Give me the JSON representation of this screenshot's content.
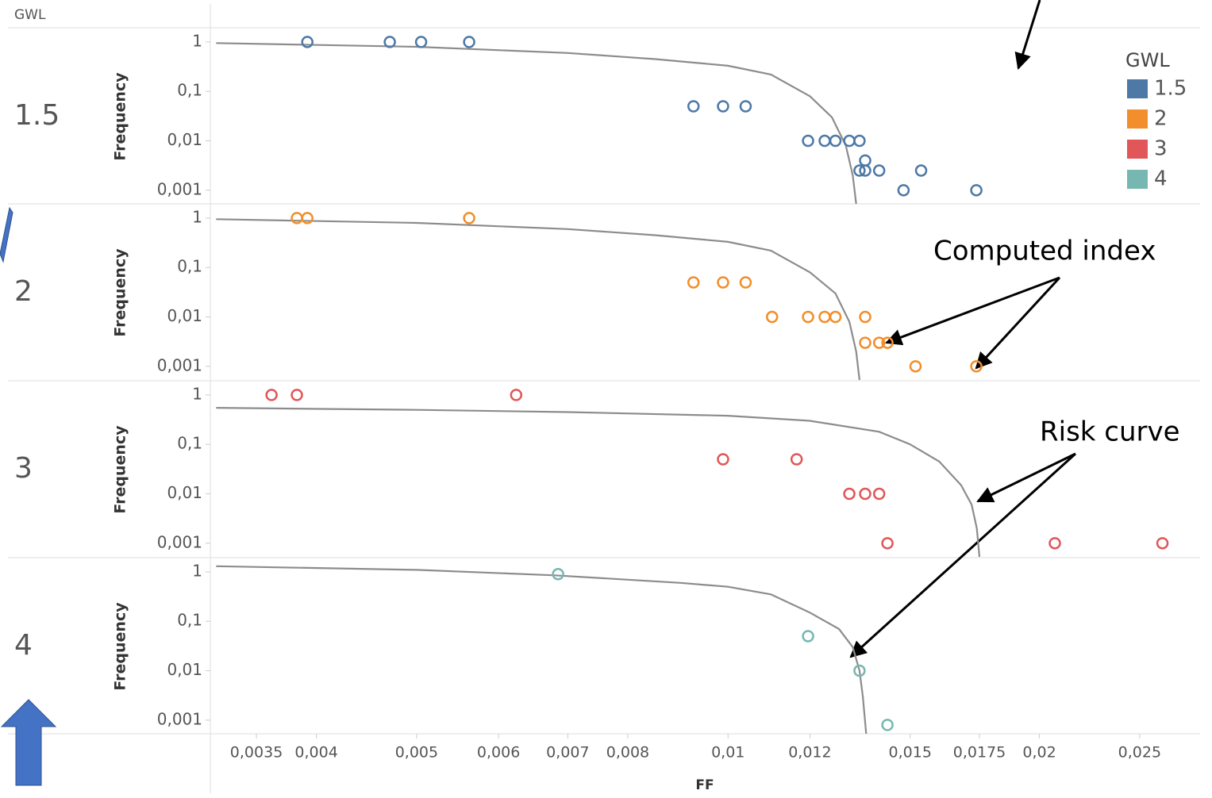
{
  "facet_header": "GWL",
  "legend_title": "GWL",
  "annotations": [
    "Computed index",
    "Risk curve"
  ],
  "chart_data": [
    {
      "type": "scatter",
      "y_label": "Frequency",
      "log_x": true,
      "log_y": true,
      "xlim": [
        0.00317,
        0.0286
      ],
      "ylim": [
        0.00053,
        1.94
      ],
      "yticks": [
        1,
        {
          "value": 0.1,
          "label": "0,1"
        },
        {
          "value": 0.01,
          "label": "0,01"
        },
        {
          "value": 0.001,
          "label": "0,001"
        }
      ],
      "series": [
        {
          "name": "1.5",
          "color": "#4e79a7",
          "x": [
            0.00392,
            0.00471,
            0.00505,
            0.00562,
            0.00926,
            0.00989,
            0.0104,
            0.01195,
            0.0124,
            0.0127,
            0.0131,
            0.0134,
            0.01357,
            0.0134,
            0.01357,
            0.014,
            0.01537,
            0.01478,
            0.01738
          ],
          "values": [
            1,
            1,
            1,
            1,
            0.05,
            0.05,
            0.05,
            0.01,
            0.01,
            0.01,
            0.01,
            0.01,
            0.004,
            0.0025,
            0.0025,
            0.0025,
            0.0025,
            0.001,
            0.001
          ]
        }
      ],
      "risk_curve": {
        "color": "#8c8c8c",
        "x": [
          0.0032,
          0.005,
          0.007,
          0.0085,
          0.01,
          0.011,
          0.012,
          0.0126,
          0.013,
          0.0132,
          0.0133
        ],
        "values": [
          0.95,
          0.8,
          0.6,
          0.45,
          0.33,
          0.22,
          0.08,
          0.03,
          0.008,
          0.002,
          0.00053
        ]
      }
    },
    {
      "type": "scatter",
      "y_label": "Frequency",
      "log_x": true,
      "log_y": true,
      "xlim": [
        0.00317,
        0.0286
      ],
      "ylim": [
        0.00053,
        1.94
      ],
      "yticks": [
        1,
        {
          "value": 0.1,
          "label": "0,1"
        },
        {
          "value": 0.01,
          "label": "0,01"
        },
        {
          "value": 0.001,
          "label": "0,001"
        }
      ],
      "series": [
        {
          "name": "2",
          "color": "#f28e2b",
          "x": [
            0.00383,
            0.00392,
            0.00562,
            0.00926,
            0.00989,
            0.0104,
            0.01103,
            0.01195,
            0.0124,
            0.0127,
            0.01357,
            0.01357,
            0.014,
            0.01426,
            0.01518,
            0.01738
          ],
          "values": [
            1,
            1,
            1,
            0.05,
            0.05,
            0.05,
            0.01,
            0.01,
            0.01,
            0.01,
            0.01,
            0.003,
            0.003,
            0.003,
            0.001,
            0.001
          ]
        }
      ],
      "risk_curve": {
        "color": "#8c8c8c",
        "x": [
          0.0032,
          0.005,
          0.007,
          0.0085,
          0.01,
          0.011,
          0.012,
          0.0127,
          0.0131,
          0.0133,
          0.0134
        ],
        "values": [
          0.95,
          0.8,
          0.6,
          0.45,
          0.33,
          0.22,
          0.08,
          0.03,
          0.008,
          0.002,
          0.00053
        ]
      }
    },
    {
      "type": "scatter",
      "y_label": "Frequency",
      "log_x": true,
      "log_y": true,
      "xlim": [
        0.00317,
        0.0286
      ],
      "ylim": [
        0.00053,
        1.94
      ],
      "yticks": [
        1,
        {
          "value": 0.1,
          "label": "0,1"
        },
        {
          "value": 0.01,
          "label": "0,01"
        },
        {
          "value": 0.001,
          "label": "0,001"
        }
      ],
      "series": [
        {
          "name": "3",
          "color": "#e15759",
          "x": [
            0.00362,
            0.00383,
            0.00624,
            0.00989,
            0.01165,
            0.0131,
            0.01357,
            0.014,
            0.01426,
            0.0207,
            0.0263
          ],
          "values": [
            1,
            1,
            1,
            0.05,
            0.05,
            0.01,
            0.01,
            0.01,
            0.001,
            0.001,
            0.001
          ]
        }
      ],
      "risk_curve": {
        "color": "#8c8c8c",
        "x": [
          0.0032,
          0.005,
          0.007,
          0.01,
          0.012,
          0.014,
          0.015,
          0.016,
          0.0168,
          0.0172,
          0.0174,
          0.0175
        ],
        "values": [
          0.55,
          0.5,
          0.45,
          0.38,
          0.3,
          0.18,
          0.1,
          0.045,
          0.015,
          0.006,
          0.002,
          0.00053
        ]
      }
    },
    {
      "type": "scatter",
      "y_label": "Frequency",
      "x_label": "FF",
      "log_x": true,
      "log_y": true,
      "xlim": [
        0.00317,
        0.0286
      ],
      "ylim": [
        0.00053,
        1.94
      ],
      "yticks": [
        1,
        {
          "value": 0.1,
          "label": "0,1"
        },
        {
          "value": 0.01,
          "label": "0,01"
        },
        {
          "value": 0.001,
          "label": "0,001"
        }
      ],
      "xticks": [
        {
          "value": 0.0035,
          "label": "0,0035"
        },
        {
          "value": 0.004,
          "label": "0,004"
        },
        {
          "value": 0.005,
          "label": "0,005"
        },
        {
          "value": 0.006,
          "label": "0,006"
        },
        {
          "value": 0.007,
          "label": "0,007"
        },
        {
          "value": 0.008,
          "label": "0,008"
        },
        {
          "value": 0.01,
          "label": "0,01"
        },
        {
          "value": 0.012,
          "label": "0,012"
        },
        {
          "value": 0.015,
          "label": "0,015"
        },
        {
          "value": 0.0175,
          "label": "0,0175"
        },
        {
          "value": 0.02,
          "label": "0,02"
        },
        {
          "value": 0.025,
          "label": "0,025"
        }
      ],
      "series": [
        {
          "name": "4",
          "color": "#76b7b2",
          "x": [
            0.00685,
            0.01195,
            0.0134,
            0.01426
          ],
          "values": [
            0.9,
            0.05,
            0.01,
            0.0008
          ]
        }
      ],
      "risk_curve": {
        "color": "#8c8c8c",
        "x": [
          0.0032,
          0.005,
          0.0068,
          0.009,
          0.01,
          0.011,
          0.012,
          0.0128,
          0.0132,
          0.0134,
          0.0135,
          0.0136
        ],
        "values": [
          1.3,
          1.1,
          0.85,
          0.6,
          0.5,
          0.35,
          0.15,
          0.07,
          0.03,
          0.01,
          0.003,
          0.00053
        ]
      }
    }
  ]
}
